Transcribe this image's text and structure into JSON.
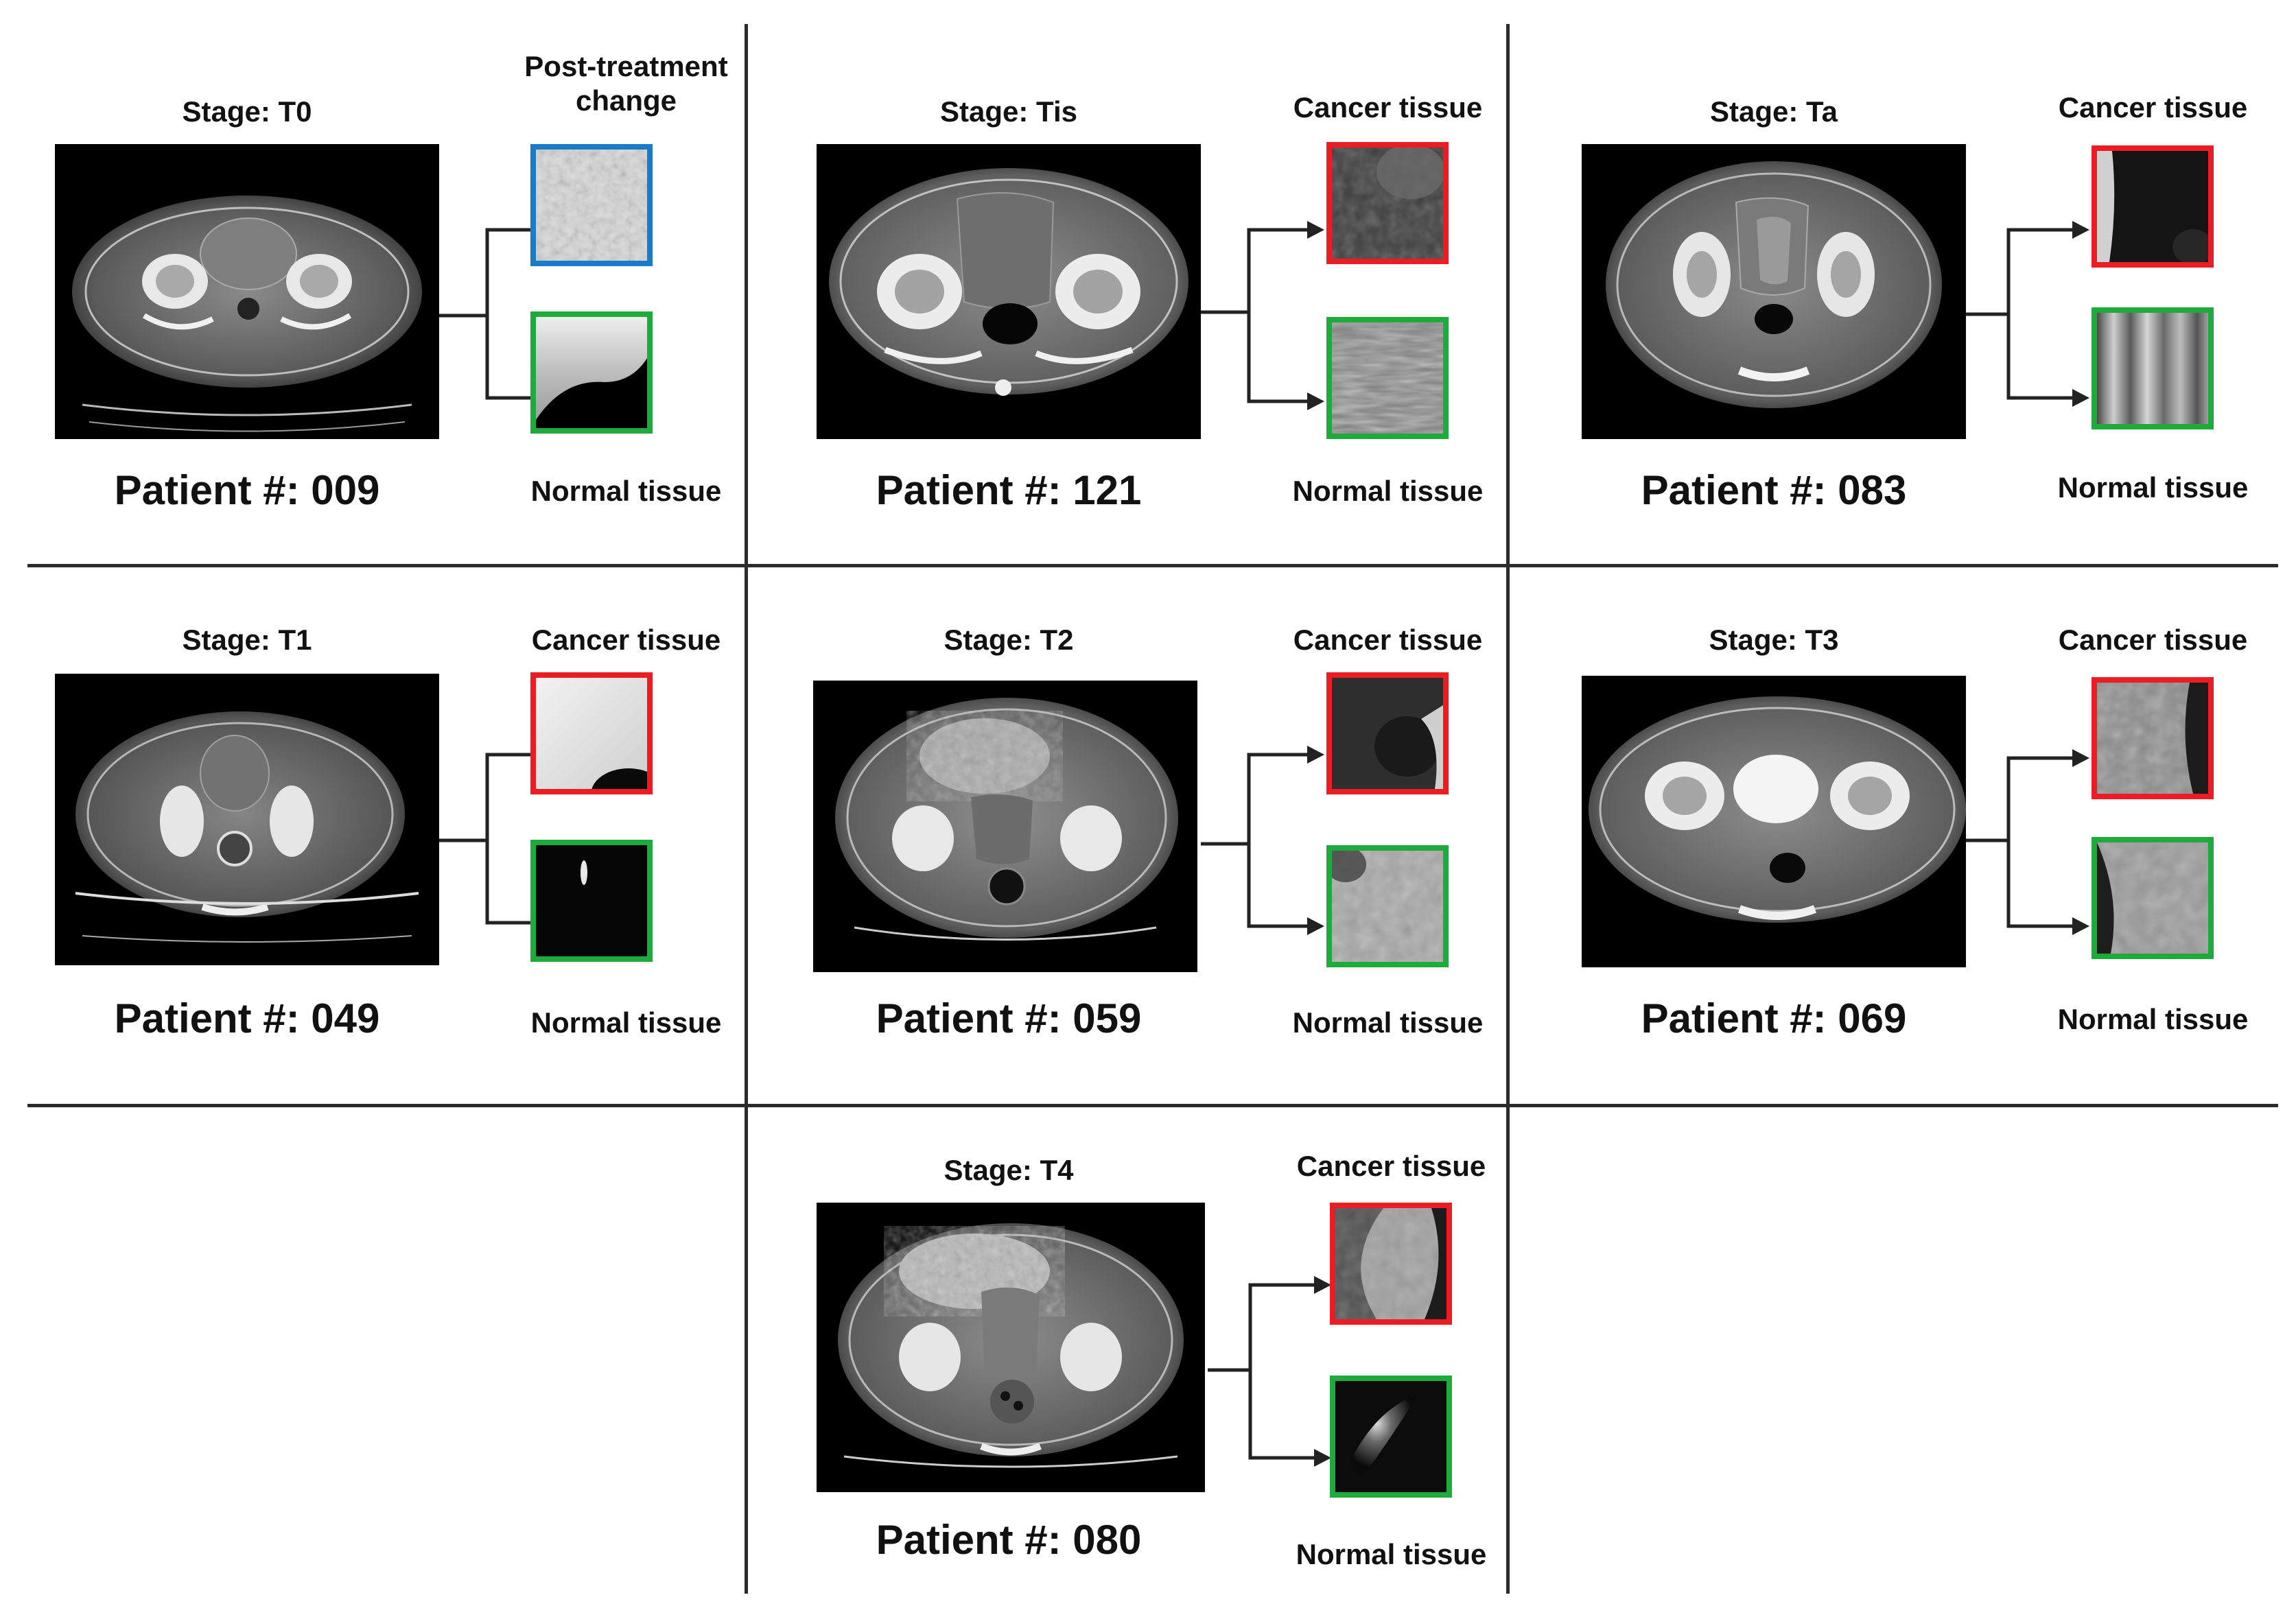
{
  "colors": {
    "cancer_border": "#ec1c24",
    "normal_border": "#1faa3c",
    "post_treatment_border": "#1a7cc6",
    "grid_lines": "#2b2b2b"
  },
  "panels": [
    {
      "stage": "Stage: T0",
      "patient": "Patient #: 009",
      "top_label": "Post-treatment change",
      "top_kind": "post_treatment",
      "bottom_label": "Normal tissue"
    },
    {
      "stage": "Stage: Tis",
      "patient": "Patient #: 121",
      "top_label": "Cancer tissue",
      "top_kind": "cancer",
      "bottom_label": "Normal tissue"
    },
    {
      "stage": "Stage: Ta",
      "patient": "Patient #: 083",
      "top_label": "Cancer tissue",
      "top_kind": "cancer",
      "bottom_label": "Normal tissue"
    },
    {
      "stage": "Stage: T1",
      "patient": "Patient #: 049",
      "top_label": "Cancer tissue",
      "top_kind": "cancer",
      "bottom_label": "Normal tissue"
    },
    {
      "stage": "Stage: T2",
      "patient": "Patient #: 059",
      "top_label": "Cancer tissue",
      "top_kind": "cancer",
      "bottom_label": "Normal tissue"
    },
    {
      "stage": "Stage: T3",
      "patient": "Patient #: 069",
      "top_label": "Cancer tissue",
      "top_kind": "cancer",
      "bottom_label": "Normal tissue"
    },
    {
      "stage": "Stage: T4",
      "patient": "Patient #: 080",
      "top_label": "Cancer tissue",
      "top_kind": "cancer",
      "bottom_label": "Normal tissue"
    }
  ]
}
